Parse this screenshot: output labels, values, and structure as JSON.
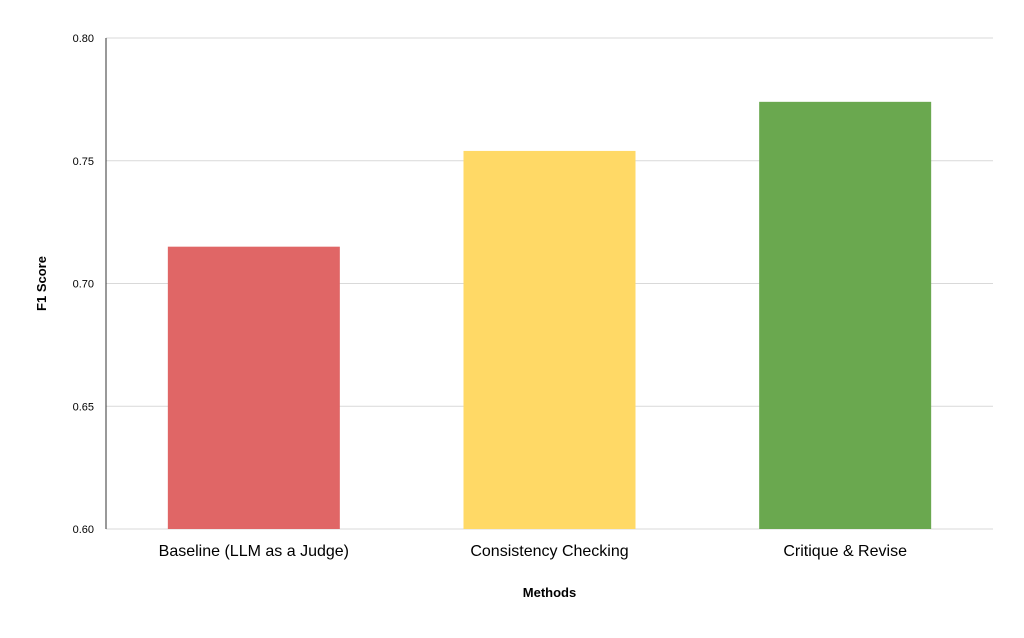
{
  "chart_data": {
    "type": "bar",
    "title": "",
    "xlabel": "Methods",
    "ylabel": "F1 Score",
    "categories": [
      "Baseline (LLM as a Judge)",
      "Consistency Checking",
      "Critique & Revise"
    ],
    "values": [
      0.715,
      0.754,
      0.774
    ],
    "colors": [
      "#e06666",
      "#ffd966",
      "#6aa84f"
    ],
    "ylim": [
      0.6,
      0.8
    ],
    "yticks": [
      "0.60",
      "0.65",
      "0.70",
      "0.75",
      "0.80"
    ],
    "grid": true,
    "legend": "none"
  }
}
